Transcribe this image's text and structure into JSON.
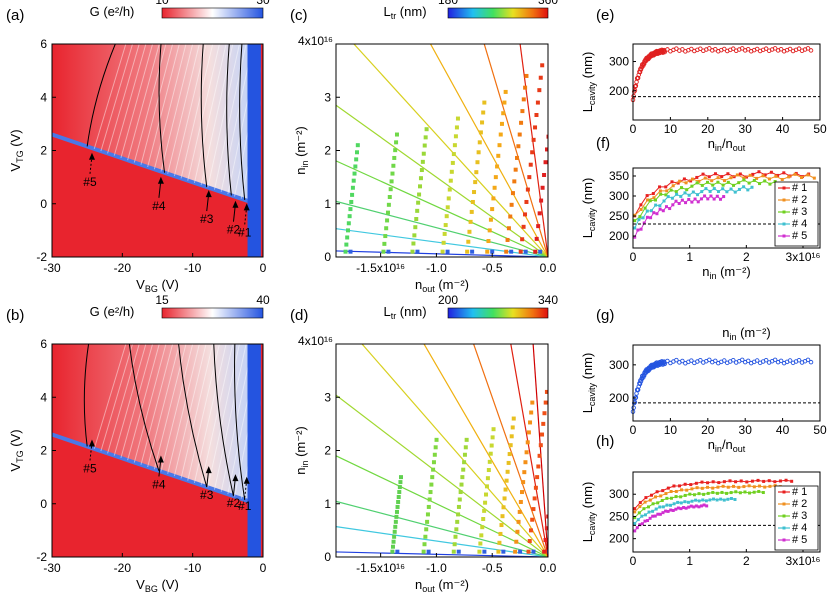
{
  "figure": {
    "panel_labels": [
      "(a)",
      "(b)",
      "(c)",
      "(d)",
      "(e)",
      "(f)",
      "(g)",
      "(h)"
    ]
  },
  "chart_data": [
    {
      "id": "a",
      "type": "heatmap",
      "colorbar": {
        "label": "G (e²/h)",
        "min_label": "10",
        "max_label": "30",
        "colors": [
          "#e8242e",
          "#ffffff",
          "#2454e0"
        ]
      },
      "xlabel_main": "V",
      "xlabel_sub": "BG",
      "xlabel_unit": " (V)",
      "ylabel_main": "V",
      "ylabel_sub": "TG",
      "ylabel_unit": " (V)",
      "xlim": [
        -30,
        0
      ],
      "ylim": [
        -2,
        6
      ],
      "xticks": [
        "-30",
        "-20",
        "-10",
        "0"
      ],
      "yticks": [
        "-2",
        "0",
        "2",
        "4",
        "6"
      ],
      "annotations": [
        {
          "text": "#5",
          "x": -24.6,
          "y": 1.2
        },
        {
          "text": "#4",
          "x": -14.8,
          "y": 0.3
        },
        {
          "text": "#3",
          "x": -8.0,
          "y": -0.2
        },
        {
          "text": "#2",
          "x": -4.2,
          "y": -0.6
        },
        {
          "text": "#1",
          "x": -2.6,
          "y": -0.7
        }
      ]
    },
    {
      "id": "b",
      "type": "heatmap",
      "colorbar": {
        "label": "G (e²/h)",
        "min_label": "15",
        "max_label": "40",
        "colors": [
          "#e8242e",
          "#ffffff",
          "#2454e0"
        ]
      },
      "xlabel_main": "V",
      "xlabel_sub": "BG",
      "xlabel_unit": " (V)",
      "ylabel_main": "V",
      "ylabel_sub": "TG",
      "ylabel_unit": " (V)",
      "xlim": [
        -30,
        0
      ],
      "ylim": [
        -2,
        6
      ],
      "xticks": [
        "-30",
        "-20",
        "-10",
        "0"
      ],
      "yticks": [
        "-2",
        "0",
        "2",
        "4",
        "6"
      ],
      "annotations": [
        {
          "text": "#5",
          "x": -24.6,
          "y": 1.7
        },
        {
          "text": "#4",
          "x": -14.8,
          "y": 1.1
        },
        {
          "text": "#3",
          "x": -8.0,
          "y": 0.7
        },
        {
          "text": "#2",
          "x": -4.2,
          "y": 0.4
        },
        {
          "text": "#1",
          "x": -2.6,
          "y": 0.3
        }
      ]
    },
    {
      "id": "c",
      "type": "scatter",
      "colorbar": {
        "label_main": "L",
        "label_sub": "tr",
        "label_unit": " (nm)",
        "min_label": "180",
        "max_label": "360"
      },
      "xlabel_main": "n",
      "xlabel_sub": "out",
      "xlabel_unit": " (m⁻²)",
      "ylabel_main": "n",
      "ylabel_sub": "in",
      "ylabel_unit": " (m⁻²)",
      "xlim": [
        -1.9,
        0
      ],
      "ylim": [
        0,
        4
      ],
      "xticks": [
        "-1.5x10¹⁶",
        "-1.0",
        "-0.5",
        "0.0"
      ],
      "xtick_values": [
        -1.5,
        -1.0,
        -0.5,
        0.0
      ],
      "yticks": [
        "0",
        "1",
        "2",
        "3"
      ],
      "ytick_values": [
        0,
        1,
        2,
        3
      ],
      "ytop_label": "4x10¹⁶",
      "ray_slopes": [
        0.06,
        0.28,
        0.55,
        0.95,
        1.5,
        2.3,
        3.8,
        7.0,
        16.0
      ],
      "stripes": [
        {
          "x0": -0.12,
          "top": 3.7,
          "color": "#e02020"
        },
        {
          "x0": -0.25,
          "top": 3.6,
          "color": "#e83a18"
        },
        {
          "x0": -0.38,
          "top": 3.4,
          "color": "#f07a10"
        },
        {
          "x0": -0.55,
          "top": 3.1,
          "color": "#f4a818"
        },
        {
          "x0": -0.73,
          "top": 2.9,
          "color": "#e8c020"
        },
        {
          "x0": -0.95,
          "top": 2.6,
          "color": "#c8d830"
        },
        {
          "x0": -1.22,
          "top": 2.4,
          "color": "#9ad838"
        },
        {
          "x0": -1.48,
          "top": 2.3,
          "color": "#70d848"
        },
        {
          "x0": -1.82,
          "top": 2.1,
          "color": "#50d860"
        }
      ]
    },
    {
      "id": "d",
      "type": "scatter",
      "colorbar": {
        "label_main": "L",
        "label_sub": "tr",
        "label_unit": " (nm)",
        "min_label": "200",
        "max_label": "340"
      },
      "xlabel_main": "n",
      "xlabel_sub": "out",
      "xlabel_unit": " (m⁻²)",
      "ylabel_main": "n",
      "ylabel_sub": "in",
      "ylabel_unit": " (m⁻²)",
      "xlim": [
        -1.9,
        0
      ],
      "ylim": [
        0,
        4
      ],
      "xticks": [
        "-1.5x10¹⁶",
        "-1.0",
        "-0.5",
        "0.0"
      ],
      "xtick_values": [
        -1.5,
        -1.0,
        -0.5,
        0.0
      ],
      "yticks": [
        "0",
        "1",
        "2",
        "3"
      ],
      "ytick_values": [
        0,
        1,
        2,
        3
      ],
      "ytop_label": "4x10¹⁶",
      "ray_slopes": [
        0.05,
        0.3,
        0.55,
        1.0,
        1.6,
        2.4,
        3.6,
        6.0,
        12.0,
        30.0
      ],
      "stripes": [
        {
          "x0": -0.04,
          "top": 3.4,
          "color": "#e82020"
        },
        {
          "x0": -0.18,
          "top": 3.1,
          "color": "#f05018"
        },
        {
          "x0": -0.3,
          "top": 2.9,
          "color": "#f49018"
        },
        {
          "x0": -0.45,
          "top": 2.6,
          "color": "#e8c020"
        },
        {
          "x0": -0.62,
          "top": 2.4,
          "color": "#c8d830"
        },
        {
          "x0": -0.85,
          "top": 2.2,
          "color": "#a0d838"
        },
        {
          "x0": -1.12,
          "top": 2.2,
          "color": "#80d840"
        },
        {
          "x0": -1.4,
          "top": 1.5,
          "color": "#60d050"
        }
      ]
    },
    {
      "id": "e",
      "type": "scatter",
      "xlabel_main": "n",
      "xlabel_sub": "in",
      "xlabel_mid": "/n",
      "xlabel_sub2": "out",
      "ylabel_main": "L",
      "ylabel_sub": "cavity",
      "ylabel_unit": " (nm)",
      "xlim": [
        0,
        50
      ],
      "ylim": [
        100,
        360
      ],
      "xticks": [
        "0",
        "10",
        "20",
        "30",
        "40",
        "50"
      ],
      "xtick_values": [
        0,
        10,
        20,
        30,
        40,
        50
      ],
      "yticks": [
        "200",
        "300"
      ],
      "ytick_values": [
        200,
        300
      ],
      "dashed_y": 180,
      "color": "#e02020"
    },
    {
      "id": "f",
      "type": "line",
      "xlabel_main": "n",
      "xlabel_sub": "in",
      "xlabel_unit": " (m⁻²)",
      "ylabel_main": "L",
      "ylabel_sub": "cavity",
      "ylabel_unit": " (nm)",
      "xlim": [
        0,
        3.3
      ],
      "ylim": [
        170,
        370
      ],
      "xticks": [
        "0",
        "1",
        "2",
        "3x10¹⁶"
      ],
      "xtick_values": [
        0,
        1,
        2,
        3
      ],
      "yticks": [
        "200",
        "250",
        "300",
        "350"
      ],
      "ytick_values": [
        200,
        250,
        300,
        350
      ],
      "dashed_y": 230,
      "series": [
        {
          "name": "# 1",
          "color": "#e82020",
          "start": 250,
          "plateau": 355,
          "x_end": 3.1
        },
        {
          "name": "# 2",
          "color": "#f09020",
          "start": 240,
          "plateau": 348,
          "x_end": 3.2
        },
        {
          "name": "# 3",
          "color": "#70d020",
          "start": 230,
          "plateau": 335,
          "x_end": 2.6
        },
        {
          "name": "# 4",
          "color": "#40c0d0",
          "start": 215,
          "plateau": 318,
          "x_end": 2.1
        },
        {
          "name": "# 5",
          "color": "#d030d0",
          "start": 195,
          "plateau": 300,
          "x_end": 1.6
        }
      ]
    },
    {
      "id": "g",
      "type": "scatter",
      "title": "n_in (m⁻²)",
      "title_main": "n",
      "title_sub": "in",
      "title_unit": " (m⁻²)",
      "xlabel_main": "n",
      "xlabel_sub": "in",
      "xlabel_mid": "/n",
      "xlabel_sub2": "out",
      "ylabel_main": "L",
      "ylabel_sub": "cavity",
      "ylabel_unit": " (nm)",
      "xlim": [
        0,
        50
      ],
      "ylim": [
        130,
        360
      ],
      "xticks": [
        "0",
        "10",
        "20",
        "30",
        "40",
        "50"
      ],
      "xtick_values": [
        0,
        10,
        20,
        30,
        40,
        50
      ],
      "yticks": [
        "200",
        "300"
      ],
      "ytick_values": [
        200,
        300
      ],
      "dashed_y": 185,
      "color": "#2454e0"
    },
    {
      "id": "h",
      "type": "line",
      "xlabel_main": "",
      "xlabel_sub": "",
      "xlabel_unit": "",
      "ylabel_main": "L",
      "ylabel_sub": "cavity",
      "ylabel_unit": " (nm)",
      "xlim": [
        0,
        3.3
      ],
      "ylim": [
        170,
        350
      ],
      "xticks": [
        "0",
        "1",
        "2",
        "3x10¹⁶"
      ],
      "xtick_values": [
        0,
        1,
        2,
        3
      ],
      "yticks": [
        "200",
        "250",
        "300"
      ],
      "ytick_values": [
        200,
        250,
        300
      ],
      "dashed_y": 230,
      "series": [
        {
          "name": "# 1",
          "color": "#e82020",
          "start": 265,
          "plateau": 330,
          "x_end": 2.8
        },
        {
          "name": "# 2",
          "color": "#f09020",
          "start": 258,
          "plateau": 318,
          "x_end": 2.6
        },
        {
          "name": "# 3",
          "color": "#70d020",
          "start": 245,
          "plateau": 305,
          "x_end": 2.3
        },
        {
          "name": "# 4",
          "color": "#40c0d0",
          "start": 232,
          "plateau": 290,
          "x_end": 1.8
        },
        {
          "name": "# 5",
          "color": "#d030d0",
          "start": 215,
          "plateau": 278,
          "x_end": 1.3
        }
      ]
    }
  ]
}
